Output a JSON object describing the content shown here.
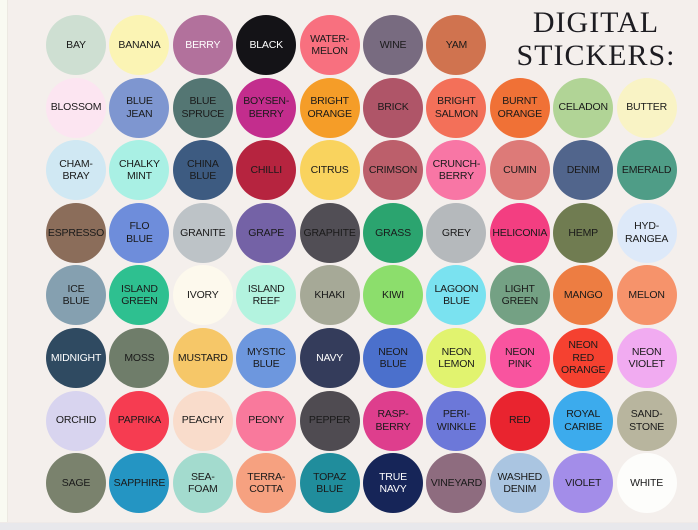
{
  "title": {
    "line1": "DIGITAL",
    "line2": "STICKERS:"
  },
  "colors": {
    "background": "#f4efec",
    "left_strip": "#f9faf2",
    "bottom_strip": "#e8e8ec",
    "title_text": "#1d1c21",
    "label_dark": "#1a1a1a",
    "label_light": "#ffffff"
  },
  "rows": [
    [
      {
        "label": "BAY",
        "color": "#cedfd2"
      },
      {
        "label": "BANANA",
        "color": "#fbf4b4"
      },
      {
        "label": "BERRY",
        "color": "#b2719c",
        "light": true
      },
      {
        "label": "BLACK",
        "color": "#141317",
        "light": true
      },
      {
        "label": "WATER-\nMELON",
        "color": "#f8707f"
      },
      {
        "label": "WINE",
        "color": "#786b80"
      },
      {
        "label": "YAM",
        "color": "#d0734f"
      }
    ],
    [
      {
        "label": "BLOSSOM",
        "color": "#fce5f1"
      },
      {
        "label": "BLUE\nJEAN",
        "color": "#7e96d0"
      },
      {
        "label": "BLUE\nSPRUCE",
        "color": "#547673"
      },
      {
        "label": "BOYSEN-\nBERRY",
        "color": "#c32d8d"
      },
      {
        "label": "BRIGHT\nORANGE",
        "color": "#f59d28"
      },
      {
        "label": "BRICK",
        "color": "#af5568"
      },
      {
        "label": "BRIGHT\nSALMON",
        "color": "#f37059"
      },
      {
        "label": "BURNT\nORANGE",
        "color": "#f07136"
      },
      {
        "label": "CELADON",
        "color": "#b1d496"
      },
      {
        "label": "BUTTER",
        "color": "#f9f3c5"
      }
    ],
    [
      {
        "label": "CHAM-\nBRAY",
        "color": "#d0e8f3"
      },
      {
        "label": "CHALKY\nMINT",
        "color": "#a9f0e4"
      },
      {
        "label": "CHINA\nBLUE",
        "color": "#3d5b81"
      },
      {
        "label": "CHILLI",
        "color": "#b6243f"
      },
      {
        "label": "CITRUS",
        "color": "#f9d35e"
      },
      {
        "label": "CRIMSON",
        "color": "#bc5f6b"
      },
      {
        "label": "CRUNCH-\nBERRY",
        "color": "#f876a5"
      },
      {
        "label": "CUMIN",
        "color": "#dd7a78"
      },
      {
        "label": "DENIM",
        "color": "#51658c"
      },
      {
        "label": "EMERALD",
        "color": "#4f9d87"
      }
    ],
    [
      {
        "label": "ESPRESSO",
        "color": "#8b6d5a"
      },
      {
        "label": "FLO\nBLUE",
        "color": "#6e8ddb"
      },
      {
        "label": "GRANITE",
        "color": "#bdc3c7"
      },
      {
        "label": "GRAPE",
        "color": "#7462a6"
      },
      {
        "label": "GRAPHITE",
        "color": "#514e55"
      },
      {
        "label": "GRASS",
        "color": "#2ba46f"
      },
      {
        "label": "GREY",
        "color": "#b5b9bc"
      },
      {
        "label": "HELICONIA",
        "color": "#f33e81"
      },
      {
        "label": "HEMP",
        "color": "#707c51"
      },
      {
        "label": "HYD-\nRANGEA",
        "color": "#dde9f9"
      }
    ],
    [
      {
        "label": "ICE\nBLUE",
        "color": "#85a0b0"
      },
      {
        "label": "ISLAND\nGREEN",
        "color": "#2ec090"
      },
      {
        "label": "IVORY",
        "color": "#fdf9ed"
      },
      {
        "label": "ISLAND\nREEF",
        "color": "#b3f3df"
      },
      {
        "label": "KHAKI",
        "color": "#a6a997"
      },
      {
        "label": "KIWI",
        "color": "#8cde6c"
      },
      {
        "label": "LAGOON\nBLUE",
        "color": "#7ae2f0"
      },
      {
        "label": "LIGHT\nGREEN",
        "color": "#74a184"
      },
      {
        "label": "MANGO",
        "color": "#ed7d42"
      },
      {
        "label": "MELON",
        "color": "#f6936b"
      }
    ],
    [
      {
        "label": "MIDNIGHT",
        "color": "#2f4a61",
        "light": true
      },
      {
        "label": "MOSS",
        "color": "#6f7d6a"
      },
      {
        "label": "MUSTARD",
        "color": "#f6c768"
      },
      {
        "label": "MYSTIC\nBLUE",
        "color": "#6d97de"
      },
      {
        "label": "NAVY",
        "color": "#343c5b",
        "light": true
      },
      {
        "label": "NEON\nBLUE",
        "color": "#4b70cc"
      },
      {
        "label": "NEON\nLEMON",
        "color": "#e1f36f"
      },
      {
        "label": "NEON\nPINK",
        "color": "#f9549f"
      },
      {
        "label": "NEON\nRED\nORANGE",
        "color": "#f54130"
      },
      {
        "label": "NEON\nVIOLET",
        "color": "#f1abf1"
      }
    ],
    [
      {
        "label": "ORCHID",
        "color": "#d8d4ef"
      },
      {
        "label": "PAPRIKA",
        "color": "#f63c51"
      },
      {
        "label": "PEACHY",
        "color": "#f9dccb"
      },
      {
        "label": "PEONY",
        "color": "#f9799c"
      },
      {
        "label": "PEPPER",
        "color": "#4f4b51"
      },
      {
        "label": "RASP-\nBERRY",
        "color": "#de3e8d"
      },
      {
        "label": "PERI-\nWINKLE",
        "color": "#6c78d9"
      },
      {
        "label": "RED",
        "color": "#e9242f"
      },
      {
        "label": "ROYAL\nCARIBE",
        "color": "#3cabed"
      },
      {
        "label": "SAND-\nSTONE",
        "color": "#b8b59e"
      }
    ],
    [
      {
        "label": "SAGE",
        "color": "#7a826d"
      },
      {
        "label": "SAPPHIRE",
        "color": "#2495c3"
      },
      {
        "label": "SEA-\nFOAM",
        "color": "#a3dbce"
      },
      {
        "label": "TERRA-\nCOTTA",
        "color": "#f6a180"
      },
      {
        "label": "TOPAZ\nBLUE",
        "color": "#208d9c"
      },
      {
        "label": "TRUE\nNAVY",
        "color": "#162558",
        "light": true
      },
      {
        "label": "VINEYARD",
        "color": "#8e6c7f"
      },
      {
        "label": "WASHED\nDENIM",
        "color": "#aac5e1"
      },
      {
        "label": "VIOLET",
        "color": "#a38de9"
      },
      {
        "label": "WHITE",
        "color": "#fdfdfb"
      }
    ]
  ]
}
